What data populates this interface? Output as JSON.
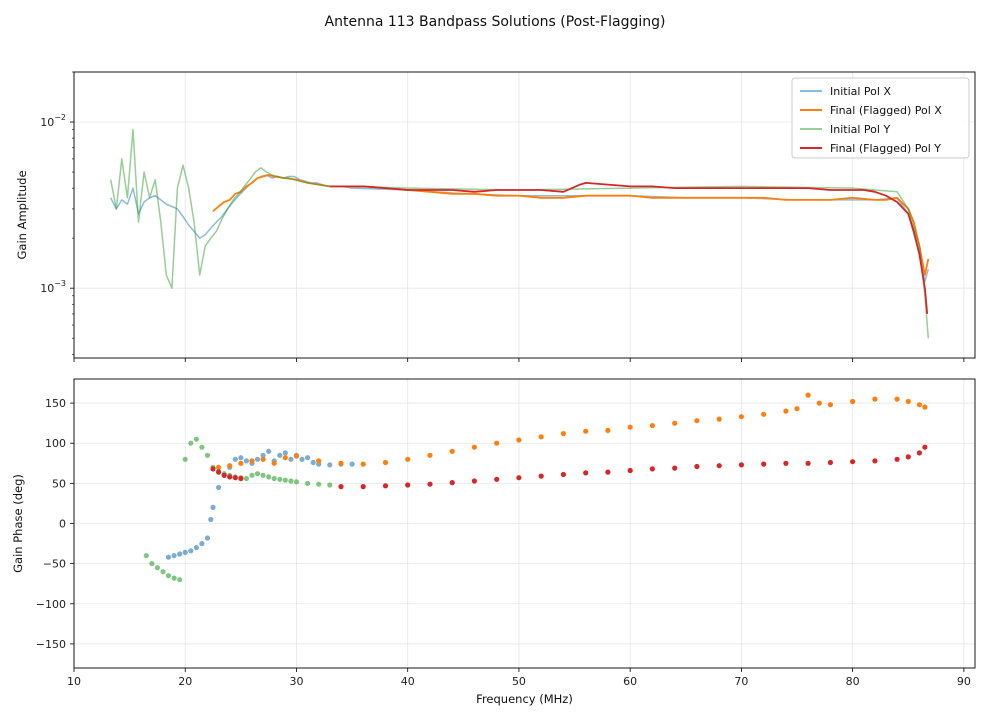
{
  "chart_data": [
    {
      "type": "line",
      "title": "Antenna 113 Bandpass Solutions (Post-Flagging)",
      "xlabel": "",
      "ylabel": "Gain Amplitude",
      "yscale": "log",
      "ylim": [
        0.00038,
        0.02
      ],
      "xlim": [
        10,
        91
      ],
      "y_tick_labels": [
        "10^-3",
        "10^-2"
      ],
      "legend_position": "top-right",
      "series": [
        {
          "name": "Initial Pol X",
          "color": "#1f77b4",
          "x": [
            13.3,
            13.8,
            14.3,
            14.8,
            15.3,
            15.8,
            16.3,
            16.8,
            17.3,
            17.8,
            18.3,
            18.8,
            19.3,
            19.8,
            20.3,
            20.8,
            21.3,
            21.8,
            22.3,
            22.8,
            23.3,
            23.8,
            24.3,
            24.8,
            25.3,
            25.8,
            26.3,
            26.8,
            27.3,
            27.8,
            28.3,
            28.8,
            29.3,
            29.8,
            30.3,
            30.8,
            31.3,
            31.8,
            32.3,
            32.8,
            33.3,
            34,
            35,
            40,
            45,
            50,
            55,
            60,
            65,
            70,
            75,
            80,
            82,
            84,
            85,
            86,
            86.5,
            86.8
          ],
          "values": [
            0.0035,
            0.003,
            0.0034,
            0.0032,
            0.004,
            0.0028,
            0.0033,
            0.0035,
            0.0036,
            0.0034,
            0.0032,
            0.0031,
            0.003,
            0.0027,
            0.0024,
            0.0022,
            0.002,
            0.0021,
            0.0023,
            0.0025,
            0.0027,
            0.003,
            0.0033,
            0.0036,
            0.0039,
            0.0042,
            0.0045,
            0.0047,
            0.0048,
            0.0046,
            0.0047,
            0.0046,
            0.0047,
            0.0047,
            0.0045,
            0.0044,
            0.0043,
            0.0043,
            0.0042,
            0.0041,
            0.0041,
            0.0041,
            0.004,
            0.0039,
            0.0037,
            0.0036,
            0.0036,
            0.0036,
            0.0035,
            0.0035,
            0.0034,
            0.0034,
            0.0034,
            0.0035,
            0.0028,
            0.0016,
            0.0011,
            0.0013
          ]
        },
        {
          "name": "Final (Flagged) Pol X",
          "color": "#ff7f0e",
          "x": [
            22.5,
            23,
            23.5,
            24,
            24.5,
            25,
            25.5,
            26,
            26.5,
            27,
            27.5,
            28,
            29,
            30,
            31,
            32,
            33,
            34,
            36,
            38,
            40,
            42,
            44,
            46,
            48,
            50,
            52,
            54,
            56,
            58,
            60,
            62,
            64,
            66,
            68,
            70,
            72,
            74,
            76,
            78,
            80,
            82,
            83,
            84,
            85,
            85.5,
            86,
            86.5,
            86.8
          ],
          "values": [
            0.0029,
            0.0031,
            0.0033,
            0.0034,
            0.0037,
            0.0038,
            0.0041,
            0.0043,
            0.0046,
            0.0047,
            0.0048,
            0.0047,
            0.0046,
            0.0045,
            0.0043,
            0.0042,
            0.0041,
            0.0041,
            0.0041,
            0.004,
            0.0039,
            0.0038,
            0.0037,
            0.0037,
            0.0036,
            0.0036,
            0.0035,
            0.0035,
            0.0036,
            0.0036,
            0.0036,
            0.0035,
            0.0035,
            0.0035,
            0.0035,
            0.0035,
            0.0035,
            0.0034,
            0.0034,
            0.0034,
            0.0035,
            0.0034,
            0.0034,
            0.0035,
            0.003,
            0.0025,
            0.0018,
            0.0012,
            0.0015
          ]
        },
        {
          "name": "Initial Pol Y",
          "color": "#2ca02c",
          "x": [
            13.3,
            13.8,
            14.3,
            14.8,
            15.3,
            15.8,
            16.3,
            16.8,
            17.3,
            17.8,
            18.3,
            18.8,
            19.3,
            19.8,
            20.3,
            20.8,
            21.3,
            21.8,
            22.3,
            22.8,
            23.3,
            23.8,
            24.3,
            24.8,
            25.3,
            25.8,
            26.3,
            26.8,
            27.3,
            27.8,
            28.3,
            28.8,
            29.3,
            29.8,
            30.3,
            31,
            32,
            33,
            34,
            35,
            40,
            50,
            60,
            70,
            80,
            84,
            85,
            86,
            86.5,
            86.8
          ],
          "values": [
            0.0045,
            0.003,
            0.006,
            0.0035,
            0.009,
            0.0025,
            0.005,
            0.0035,
            0.0045,
            0.0025,
            0.0012,
            0.001,
            0.004,
            0.0055,
            0.004,
            0.0025,
            0.0012,
            0.0018,
            0.002,
            0.0022,
            0.0026,
            0.003,
            0.0034,
            0.0037,
            0.0041,
            0.0045,
            0.005,
            0.0053,
            0.005,
            0.0048,
            0.0047,
            0.0046,
            0.0046,
            0.0045,
            0.0044,
            0.0043,
            0.0042,
            0.0041,
            0.0041,
            0.0041,
            0.004,
            0.0039,
            0.004,
            0.0041,
            0.004,
            0.0038,
            0.003,
            0.0018,
            0.0009,
            0.0005
          ]
        },
        {
          "name": "Final (Flagged) Pol Y",
          "color": "#d62728",
          "x": [
            33,
            34,
            36,
            38,
            40,
            42,
            44,
            46,
            48,
            50,
            52,
            54,
            55.5,
            56,
            58,
            60,
            62,
            64,
            66,
            68,
            70,
            72,
            74,
            76,
            78,
            80,
            81,
            82,
            83,
            84,
            85,
            85.5,
            86,
            86.5,
            86.7
          ],
          "values": [
            0.0041,
            0.0041,
            0.0041,
            0.004,
            0.0039,
            0.0039,
            0.0039,
            0.0038,
            0.0039,
            0.0039,
            0.0039,
            0.0038,
            0.0042,
            0.0043,
            0.0042,
            0.0041,
            0.0041,
            0.004,
            0.004,
            0.004,
            0.004,
            0.004,
            0.004,
            0.004,
            0.0039,
            0.0039,
            0.0039,
            0.0038,
            0.0036,
            0.0033,
            0.0028,
            0.0022,
            0.0016,
            0.001,
            0.0007
          ]
        }
      ]
    },
    {
      "type": "scatter",
      "xlabel": "Frequency (MHz)",
      "ylabel": "Gain Phase (deg)",
      "xlim": [
        10,
        91
      ],
      "ylim": [
        -180,
        180
      ],
      "x_tick_labels": [
        "10",
        "20",
        "30",
        "40",
        "50",
        "60",
        "70",
        "80",
        "90"
      ],
      "y_tick_labels": [
        "150",
        "100",
        "50",
        "0",
        "−50",
        "−100",
        "−150"
      ],
      "series": [
        {
          "name": "Initial Pol X",
          "color": "#1f77b4",
          "x": [
            18.5,
            19,
            19.5,
            20,
            20.5,
            21,
            21.5,
            22,
            22.3,
            22.5,
            23,
            23.5,
            24,
            24.5,
            25,
            25.5,
            26,
            26.5,
            27,
            27.5,
            28,
            28.5,
            29,
            29.5,
            30,
            30.5,
            31,
            31.5,
            32,
            33,
            34,
            35
          ],
          "values": [
            -42,
            -40,
            -38,
            -36,
            -34,
            -30,
            -25,
            -18,
            5,
            20,
            45,
            60,
            70,
            80,
            82,
            78,
            75,
            80,
            85,
            90,
            78,
            85,
            88,
            80,
            85,
            80,
            82,
            76,
            74,
            73,
            74,
            74
          ]
        },
        {
          "name": "Final (Flagged) Pol X",
          "color": "#ff7f0e",
          "x": [
            23,
            24,
            25,
            26,
            27,
            28,
            29,
            30,
            32,
            34,
            36,
            38,
            40,
            42,
            44,
            46,
            48,
            50,
            52,
            54,
            56,
            58,
            60,
            62,
            64,
            66,
            68,
            70,
            72,
            74,
            75,
            76,
            77,
            78,
            80,
            82,
            84,
            85,
            86,
            86.5
          ],
          "values": [
            70,
            72,
            75,
            78,
            80,
            75,
            82,
            84,
            78,
            75,
            74,
            76,
            80,
            85,
            90,
            95,
            100,
            104,
            108,
            112,
            115,
            116,
            120,
            122,
            125,
            128,
            130,
            133,
            136,
            140,
            143,
            160,
            150,
            148,
            152,
            155,
            155,
            152,
            148,
            145
          ]
        },
        {
          "name": "Initial Pol Y",
          "color": "#2ca02c",
          "x": [
            16.5,
            17,
            17.5,
            18,
            18.5,
            19,
            19.5,
            20,
            20.5,
            21,
            21.5,
            22,
            22.5,
            23,
            23.5,
            24,
            24.5,
            25,
            25.5,
            26,
            26.5,
            27,
            27.5,
            28,
            28.5,
            29,
            29.5,
            30,
            31,
            32,
            33
          ],
          "values": [
            -40,
            -50,
            -55,
            -60,
            -65,
            -68,
            -70,
            80,
            100,
            105,
            95,
            85,
            70,
            65,
            62,
            60,
            58,
            57,
            56,
            60,
            62,
            60,
            58,
            56,
            55,
            54,
            53,
            52,
            50,
            49,
            48
          ]
        },
        {
          "name": "Final (Flagged) Pol Y",
          "color": "#d62728",
          "x": [
            22.5,
            23,
            23.5,
            24,
            24.5,
            25,
            34,
            36,
            38,
            40,
            42,
            44,
            46,
            48,
            50,
            52,
            54,
            56,
            58,
            60,
            62,
            64,
            66,
            68,
            70,
            72,
            74,
            76,
            78,
            80,
            82,
            84,
            85,
            86,
            86.5
          ],
          "values": [
            68,
            64,
            60,
            58,
            57,
            56,
            46,
            46,
            47,
            48,
            49,
            51,
            53,
            55,
            57,
            59,
            61,
            63,
            64,
            66,
            68,
            69,
            71,
            72,
            73,
            74,
            75,
            75,
            76,
            77,
            78,
            80,
            83,
            88,
            95
          ]
        }
      ]
    }
  ],
  "legend": {
    "items": [
      {
        "label": "Initial Pol X",
        "color": "#1f77b4"
      },
      {
        "label": "Final (Flagged) Pol X",
        "color": "#ff7f0e"
      },
      {
        "label": "Initial Pol Y",
        "color": "#2ca02c"
      },
      {
        "label": "Final (Flagged) Pol Y",
        "color": "#d62728"
      }
    ]
  },
  "colors": {
    "grid": "#e6e6e6",
    "axis": "#000000"
  }
}
